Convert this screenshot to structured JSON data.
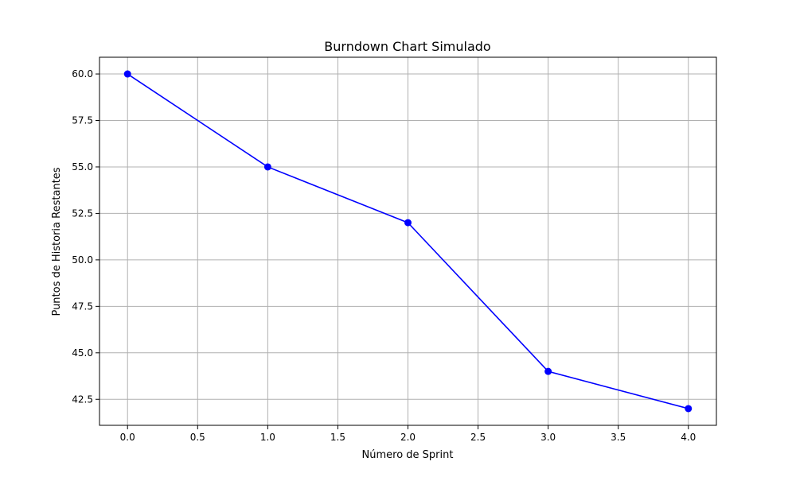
{
  "chart_data": {
    "type": "line",
    "title": "Burndown Chart Simulado",
    "xlabel": "Número de Sprint",
    "ylabel": "Puntos de Historia Restantes",
    "x": [
      0,
      1,
      2,
      3,
      4
    ],
    "series": [
      {
        "values": [
          60,
          55,
          52,
          44,
          42
        ],
        "color": "#0000ff",
        "marker": "circle"
      }
    ],
    "xlim": [
      -0.2,
      4.2
    ],
    "ylim": [
      41.1,
      60.9
    ],
    "xticks": [
      0.0,
      0.5,
      1.0,
      1.5,
      2.0,
      2.5,
      3.0,
      3.5,
      4.0
    ],
    "xtick_labels": [
      "0.0",
      "0.5",
      "1.0",
      "1.5",
      "2.0",
      "2.5",
      "3.0",
      "3.5",
      "4.0"
    ],
    "yticks": [
      42.5,
      45.0,
      47.5,
      50.0,
      52.5,
      55.0,
      57.5,
      60.0
    ],
    "ytick_labels": [
      "42.5",
      "45.0",
      "47.5",
      "50.0",
      "52.5",
      "55.0",
      "57.5",
      "60.0"
    ],
    "grid": true,
    "grid_color": "#b0b0b0"
  }
}
